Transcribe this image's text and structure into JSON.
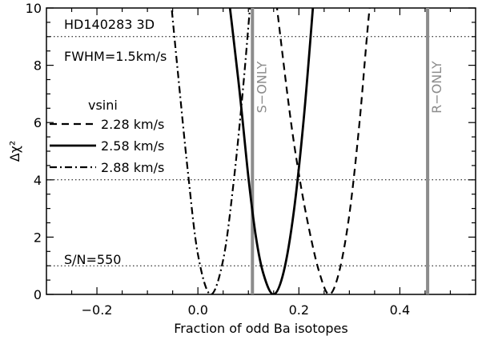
{
  "chart_data": {
    "type": "line",
    "title": "",
    "xlabel": "Fraction of odd Ba isotopes",
    "ylabel": "Δχ²",
    "xlim": [
      -0.3,
      0.55
    ],
    "ylim": [
      0,
      10
    ],
    "xticks": [
      -0.2,
      0.0,
      0.2,
      0.4
    ],
    "xtick_labels": [
      "−0.2",
      "0.0",
      "0.2",
      "0.4"
    ],
    "yticks": [
      0,
      2,
      4,
      6,
      8,
      10
    ],
    "ytick_labels": [
      "0",
      "2",
      "4",
      "6",
      "8",
      "10"
    ],
    "grid": false,
    "annotations": {
      "star": "HD140283 3D",
      "fwhm": "FWHM=1.5km/s",
      "snr": "S/N=550",
      "legend_title": "vsini"
    },
    "hlines": [
      1,
      4,
      9
    ],
    "vlines": [
      {
        "x": 0.108,
        "label": "S−ONLY",
        "color": "#8c8c8c"
      },
      {
        "x": 0.455,
        "label": "R−ONLY",
        "color": "#8c8c8c"
      }
    ],
    "series": [
      {
        "name": "2.28 km/s",
        "style": "dashed",
        "min_x": 0.26,
        "min_y": 0.0,
        "x": [
          0.15,
          0.18,
          0.2,
          0.22,
          0.24,
          0.26,
          0.28,
          0.3,
          0.32,
          0.34,
          0.37
        ],
        "y": [
          11.0,
          6.6,
          4.2,
          2.3,
          0.8,
          0.0,
          0.8,
          2.8,
          6.0,
          10.0,
          15.0
        ]
      },
      {
        "name": "2.58 km/s",
        "style": "solid",
        "min_x": 0.15,
        "min_y": 0.0,
        "x": [
          0.05,
          0.08,
          0.1,
          0.115,
          0.13,
          0.15,
          0.17,
          0.19,
          0.21,
          0.23,
          0.25
        ],
        "y": [
          12.0,
          7.5,
          4.1,
          2.0,
          0.7,
          0.0,
          0.8,
          2.9,
          6.2,
          10.5,
          15.0
        ]
      },
      {
        "name": "2.88 km/s",
        "style": "dashdot",
        "min_x": 0.025,
        "min_y": 0.0,
        "x": [
          -0.06,
          -0.04,
          -0.02,
          0.0,
          0.025,
          0.05,
          0.07,
          0.09,
          0.11
        ],
        "y": [
          11.5,
          7.8,
          4.3,
          1.4,
          0.0,
          1.2,
          3.8,
          7.3,
          11.5
        ]
      }
    ],
    "series_color": "#000000",
    "vline_color": "#8c8c8c",
    "hline_color": "#000000"
  }
}
